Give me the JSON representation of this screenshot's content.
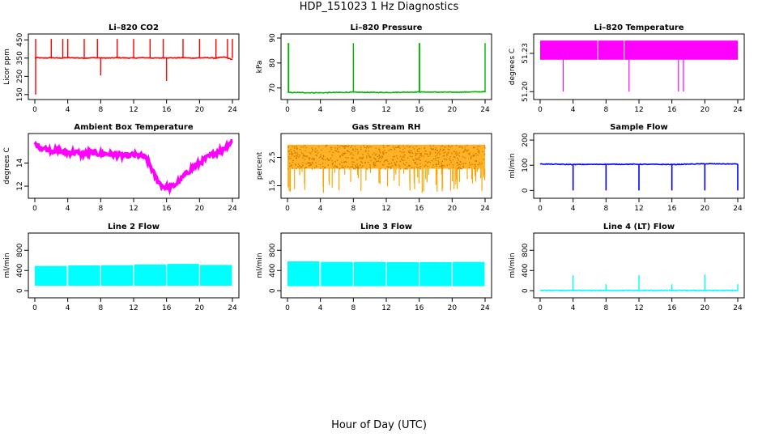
{
  "page": {
    "title": "HDP_151023  1 Hz Diagnostics",
    "x_title": "Hour of Day (UTC)"
  },
  "chart_data": [
    {
      "type": "line",
      "title": "Li–820 CO2",
      "ylabel": "Licor ppm",
      "color": "#ff0000",
      "xlim": [
        0,
        24
      ],
      "ylim": [
        145,
        460
      ],
      "x_ticks": [
        0,
        4,
        8,
        12,
        16,
        20,
        24
      ],
      "y_ticks": [
        150,
        250,
        350,
        450
      ],
      "series": [
        {
          "x": [
            0,
            0.3,
            1.0,
            2.0,
            3.0,
            4.0,
            5.0,
            6.0,
            7.0,
            8.0,
            9.0,
            10.0,
            11.0,
            12.0,
            13.0,
            14.0,
            15.0,
            16.0,
            17.0,
            18.0,
            19.0,
            20.0,
            21.0,
            22.0,
            23.0,
            24.0
          ],
          "y": [
            350,
            352,
            350,
            352,
            350,
            352,
            351,
            350,
            352,
            351,
            350,
            352,
            351,
            350,
            352,
            351,
            350,
            352,
            351,
            352,
            350,
            351,
            352,
            350,
            356,
            342
          ]
        }
      ],
      "spikes_up_x": [
        0.1,
        2.0,
        3.4,
        4.0,
        6.0,
        7.6,
        10.0,
        12.0,
        14.0,
        15.6,
        18.0,
        20.0,
        22.0,
        23.4,
        24.0
      ],
      "spikes_up_y": 455,
      "spikes_down": [
        {
          "x": 0.1,
          "y": 150
        },
        {
          "x": 8.0,
          "y": 255
        },
        {
          "x": 16.0,
          "y": 225
        }
      ]
    },
    {
      "type": "line",
      "title": "Li–820 Pressure",
      "ylabel": "kPa",
      "color": "#00b400",
      "xlim": [
        0,
        24
      ],
      "ylim": [
        67,
        90
      ],
      "x_ticks": [
        0,
        4,
        8,
        12,
        16,
        20,
        24
      ],
      "y_ticks": [
        70,
        80,
        90
      ],
      "series": [
        {
          "x": [
            0,
            4,
            8,
            12,
            16,
            20,
            24
          ],
          "y": [
            68.2,
            68.1,
            68.3,
            68.2,
            68.4,
            68.3,
            68.5
          ]
        }
      ],
      "spikes_up_x": [
        0.1,
        0.15,
        8.0,
        16.0,
        16.05,
        24.0
      ],
      "spikes_up_y": 88
    },
    {
      "type": "area",
      "title": "Li–820 Temperature",
      "ylabel": "degrees C",
      "color": "#ff00ff",
      "xlim": [
        0,
        24
      ],
      "ylim": [
        51.197,
        51.242
      ],
      "x_ticks": [
        0,
        4,
        8,
        12,
        16,
        20,
        24
      ],
      "y_ticks": [
        51.2,
        51.23
      ],
      "y_tick_labels": [
        "51.20",
        "51.23"
      ],
      "band": {
        "low": 51.225,
        "high": 51.24
      },
      "gaps_x": [
        7.0,
        10.2
      ],
      "spikes_down_x": [
        2.8,
        10.8,
        16.8,
        17.4
      ],
      "spikes_down_y": 51.2
    },
    {
      "type": "line",
      "title": "Ambient Box Temperature",
      "ylabel": "degrees C",
      "color": "#ff00ff",
      "xlim": [
        0,
        24
      ],
      "ylim": [
        11.3,
        16.2
      ],
      "x_ticks": [
        0,
        4,
        8,
        12,
        16,
        20,
        24
      ],
      "y_ticks": [
        12,
        14
      ],
      "series": [
        {
          "x": [
            0,
            1,
            2,
            3,
            4,
            5,
            6,
            7,
            8,
            9,
            10,
            11,
            12,
            13,
            13.5,
            14,
            14.5,
            15,
            15.5,
            16,
            16.5,
            17,
            17.5,
            18,
            19,
            20,
            21,
            22,
            23,
            24
          ],
          "y": [
            15.6,
            15.3,
            15.1,
            15.0,
            14.9,
            14.9,
            14.8,
            14.9,
            14.8,
            14.8,
            14.7,
            14.6,
            14.7,
            14.6,
            14.4,
            13.8,
            13.0,
            12.4,
            12.0,
            11.9,
            11.9,
            12.1,
            12.4,
            12.8,
            13.5,
            14.0,
            14.5,
            14.9,
            15.3,
            15.9
          ]
        }
      ],
      "band_width": 0.45
    },
    {
      "type": "scatter",
      "title": "Gas Stream RH",
      "ylabel": "percent",
      "color": "#ffa500",
      "xlim": [
        0,
        24
      ],
      "ylim": [
        1.2,
        3.2
      ],
      "x_ticks": [
        0,
        4,
        8,
        12,
        16,
        20,
        24
      ],
      "y_ticks": [
        1.5,
        2.5
      ],
      "band": {
        "low": 2.1,
        "high": 2.95
      },
      "dips_min": 1.25
    },
    {
      "type": "line",
      "title": "Sample Flow",
      "ylabel": "ml/min",
      "color": "#0000ff",
      "xlim": [
        0,
        24
      ],
      "ylim": [
        -15,
        210
      ],
      "x_ticks": [
        0,
        4,
        8,
        12,
        16,
        20,
        24
      ],
      "y_ticks": [
        0,
        100,
        200
      ],
      "series": [
        {
          "x": [
            0,
            4,
            8,
            12,
            16,
            20,
            24
          ],
          "y": [
            105,
            103,
            104,
            104,
            103,
            106,
            105
          ]
        }
      ],
      "dips_x": [
        4.0,
        8.0,
        12.0,
        16.0,
        20.0,
        24.0
      ],
      "dips_y": 0
    },
    {
      "type": "area",
      "title": "Line 2 Flow",
      "ylabel": "ml/min",
      "color": "#00ffff",
      "xlim": [
        0,
        24
      ],
      "ylim": [
        -60,
        1060
      ],
      "x_ticks": [
        0,
        4,
        8,
        12,
        16,
        20,
        24
      ],
      "y_ticks": [
        0,
        400,
        800
      ],
      "bands": [
        {
          "x0": 0,
          "x1": 4,
          "low": 100,
          "high": 490
        },
        {
          "x0": 4,
          "x1": 8,
          "low": 100,
          "high": 500
        },
        {
          "x0": 8,
          "x1": 12,
          "low": 100,
          "high": 505
        },
        {
          "x0": 12,
          "x1": 16,
          "low": 100,
          "high": 520
        },
        {
          "x0": 16,
          "x1": 20,
          "low": 100,
          "high": 530
        },
        {
          "x0": 20,
          "x1": 24,
          "low": 100,
          "high": 510
        }
      ]
    },
    {
      "type": "area",
      "title": "Line 3 Flow",
      "ylabel": "ml/min",
      "color": "#00ffff",
      "xlim": [
        0,
        24
      ],
      "ylim": [
        -60,
        1060
      ],
      "x_ticks": [
        0,
        4,
        8,
        12,
        16,
        20,
        24
      ],
      "y_ticks": [
        0,
        400,
        800
      ],
      "bands": [
        {
          "x0": 0,
          "x1": 4,
          "low": 90,
          "high": 580
        },
        {
          "x0": 4,
          "x1": 8,
          "low": 90,
          "high": 570
        },
        {
          "x0": 8,
          "x1": 12,
          "low": 90,
          "high": 570
        },
        {
          "x0": 12,
          "x1": 16,
          "low": 90,
          "high": 565
        },
        {
          "x0": 16,
          "x1": 20,
          "low": 90,
          "high": 565
        },
        {
          "x0": 20,
          "x1": 24,
          "low": 90,
          "high": 570
        }
      ]
    },
    {
      "type": "line",
      "title": "Line 4 (LT) Flow",
      "ylabel": "ml/min",
      "color": "#00ffff",
      "xlim": [
        0,
        24
      ],
      "ylim": [
        -60,
        1060
      ],
      "x_ticks": [
        0,
        4,
        8,
        12,
        16,
        20,
        24
      ],
      "y_ticks": [
        0,
        400,
        800
      ],
      "series": [
        {
          "x": [
            0,
            24
          ],
          "y": [
            5,
            5
          ]
        }
      ],
      "spikes_up": [
        {
          "x": 4.0,
          "y": 310
        },
        {
          "x": 8.0,
          "y": 130
        },
        {
          "x": 12.0,
          "y": 310
        },
        {
          "x": 16.0,
          "y": 130
        },
        {
          "x": 20.0,
          "y": 320
        },
        {
          "x": 24.0,
          "y": 130
        }
      ]
    }
  ]
}
